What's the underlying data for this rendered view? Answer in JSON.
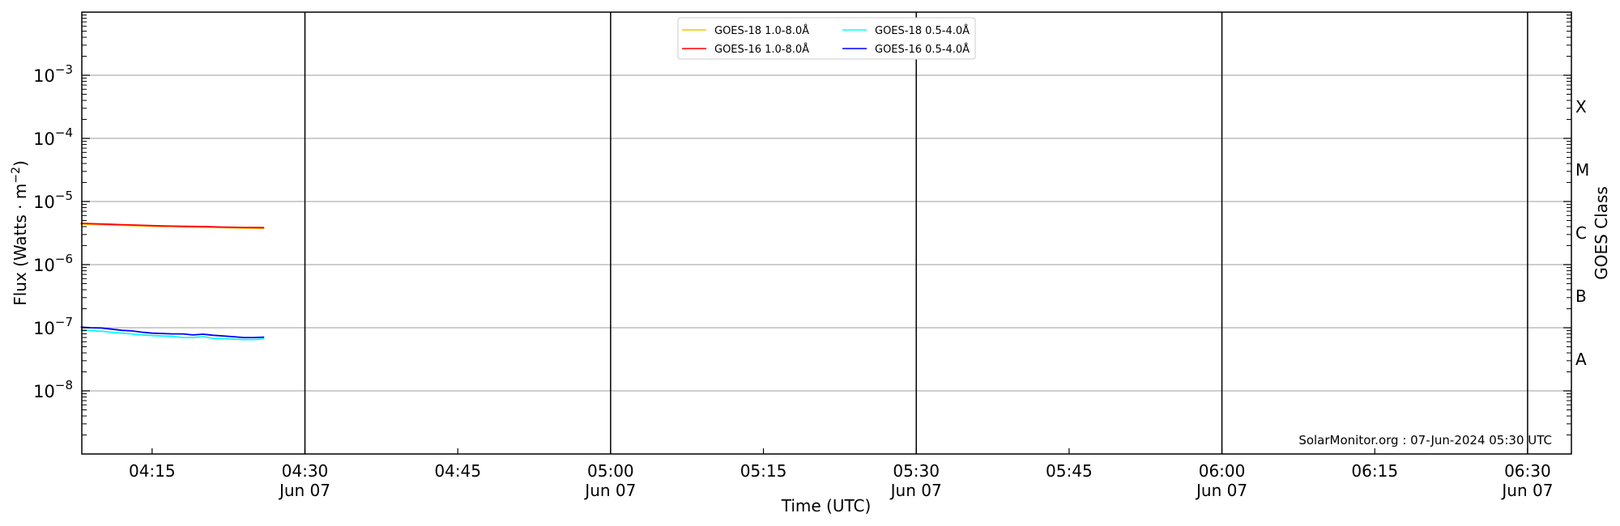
{
  "chart_data": {
    "type": "line",
    "xlabel": "Time (UTC)",
    "ylabel": "Flux (Watts · m⁻²)",
    "ylabel_right": "GOES Class",
    "y_scale": "log",
    "ylim": [
      1e-09,
      0.01
    ],
    "xlim": [
      "04:08",
      "06:34"
    ],
    "grid": "horizontal at decades",
    "y_ticks": [
      {
        "value": 0.001,
        "base": "10",
        "exp": "−3"
      },
      {
        "value": 0.0001,
        "base": "10",
        "exp": "−4"
      },
      {
        "value": 1e-05,
        "base": "10",
        "exp": "−5"
      },
      {
        "value": 1e-06,
        "base": "10",
        "exp": "−6"
      },
      {
        "value": 1e-07,
        "base": "10",
        "exp": "−7"
      },
      {
        "value": 1e-08,
        "base": "10",
        "exp": "−8"
      }
    ],
    "goes_classes": [
      {
        "label": "X",
        "low": 0.0001
      },
      {
        "label": "M",
        "low": 1e-05
      },
      {
        "label": "C",
        "low": 1e-06
      },
      {
        "label": "B",
        "low": 1e-07
      },
      {
        "label": "A",
        "low": 1e-08
      }
    ],
    "x_ticks": [
      {
        "time": "04:15",
        "label": "04:15",
        "date": ""
      },
      {
        "time": "04:30",
        "label": "04:30",
        "date": "Jun 07"
      },
      {
        "time": "04:45",
        "label": "04:45",
        "date": ""
      },
      {
        "time": "05:00",
        "label": "05:00",
        "date": "Jun 07"
      },
      {
        "time": "05:15",
        "label": "05:15",
        "date": ""
      },
      {
        "time": "05:30",
        "label": "05:30",
        "date": "Jun 07"
      },
      {
        "time": "05:45",
        "label": "05:45",
        "date": ""
      },
      {
        "time": "06:00",
        "label": "06:00",
        "date": "Jun 07"
      },
      {
        "time": "06:15",
        "label": "06:15",
        "date": ""
      },
      {
        "time": "06:30",
        "label": "06:30",
        "date": "Jun 07"
      }
    ],
    "vertical_lines": [
      "04:30",
      "05:00",
      "05:30",
      "06:00",
      "06:30"
    ],
    "x": [
      "04:08",
      "04:09",
      "04:10",
      "04:11",
      "04:12",
      "04:13",
      "04:14",
      "04:15",
      "04:16",
      "04:17",
      "04:18",
      "04:19",
      "04:20",
      "04:21",
      "04:22",
      "04:23",
      "04:24",
      "04:25",
      "04:26"
    ],
    "series": [
      {
        "name": "GOES-18 1.0-8.0Å",
        "color": "#ffc000",
        "values": [
          4.4e-06,
          4.35e-06,
          4.3e-06,
          4.25e-06,
          4.2e-06,
          4.15e-06,
          4.1e-06,
          4.05e-06,
          4e-06,
          4e-06,
          3.95e-06,
          3.95e-06,
          3.9e-06,
          3.9e-06,
          3.85e-06,
          3.82e-06,
          3.8e-06,
          3.78e-06,
          3.76e-06
        ]
      },
      {
        "name": "GOES-16 1.0-8.0Å",
        "color": "#ff0000",
        "values": [
          4.5e-06,
          4.45e-06,
          4.4e-06,
          4.35e-06,
          4.3e-06,
          4.25e-06,
          4.2e-06,
          4.15e-06,
          4.1e-06,
          4.08e-06,
          4.05e-06,
          4.03e-06,
          4e-06,
          3.97e-06,
          3.93e-06,
          3.9e-06,
          3.88e-06,
          3.86e-06,
          3.85e-06
        ]
      },
      {
        "name": "GOES-18 0.5-4.0Å",
        "color": "#00ffff",
        "values": [
          9.3e-08,
          9e-08,
          8.8e-08,
          8.5e-08,
          8.2e-08,
          8e-08,
          7.7e-08,
          7.5e-08,
          7.4e-08,
          7.3e-08,
          7e-08,
          7e-08,
          7.2e-08,
          6.8e-08,
          6.7e-08,
          6.6e-08,
          6.5e-08,
          6.5e-08,
          6.7e-08
        ]
      },
      {
        "name": "GOES-16 0.5-4.0Å",
        "color": "#0000ff",
        "values": [
          1.02e-07,
          1e-07,
          9.9e-08,
          9.5e-08,
          9.1e-08,
          8.9e-08,
          8.5e-08,
          8.2e-08,
          8.1e-08,
          8e-08,
          8e-08,
          7.7e-08,
          7.9e-08,
          7.6e-08,
          7.4e-08,
          7.2e-08,
          7e-08,
          7e-08,
          7.1e-08
        ]
      }
    ],
    "legend_placement": "top-center",
    "annotation": "SolarMonitor.org : 07-Jun-2024 05:30 UTC"
  }
}
